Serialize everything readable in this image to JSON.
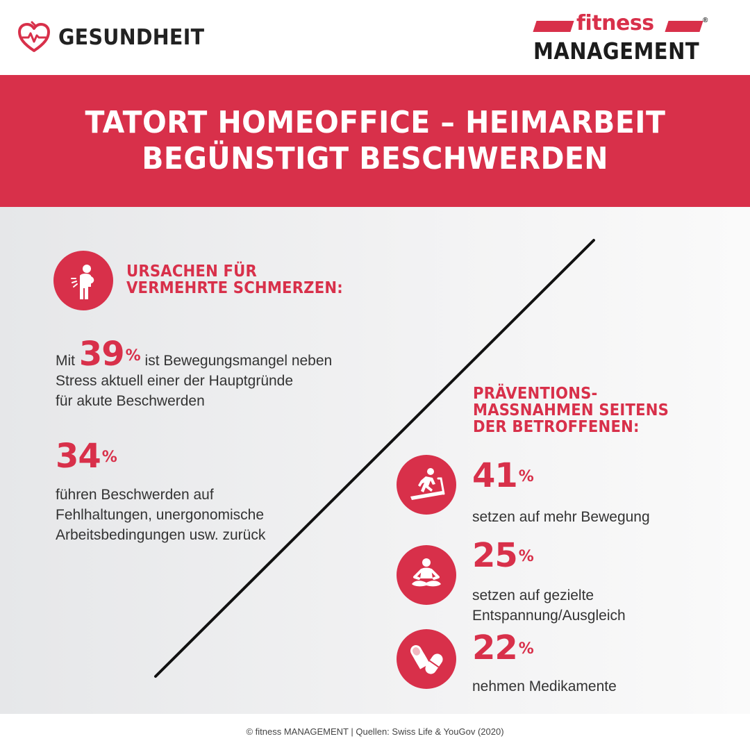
{
  "header": {
    "category_label": "GESUNDHEIT",
    "category_icon": "heart-pulse-icon",
    "brand_top": "fitness",
    "brand_bottom": "MANAGEMENT",
    "brand_registered": "®"
  },
  "banner": {
    "title_line1": "TATORT HOMEOFFICE – HEIMARBEIT",
    "title_line2": "BEGÜNSTIGT BESCHWERDEN"
  },
  "causes": {
    "icon": "back-pain-icon",
    "heading_line1": "URSACHEN FÜR",
    "heading_line2": "VERMEHRTE SCHMERZEN:",
    "stat1": {
      "prefix": "Mit",
      "number": "39",
      "percent": "%",
      "line1_suffix": "ist Bewegungsmangel neben",
      "line2": "Stress aktuell einer der Hauptgründe",
      "line3": "für akute Beschwerden"
    },
    "stat2": {
      "number": "34",
      "percent": "%",
      "line1": "führen Beschwerden auf",
      "line2": "Fehlhaltungen, unergonomische",
      "line3": "Arbeitsbedingungen usw. zurück"
    }
  },
  "prevention": {
    "heading_line1": "PRÄVENTIONS-",
    "heading_line2": "MASSNAHMEN SEITENS",
    "heading_line3": "DER BETROFFENEN:",
    "items": [
      {
        "icon": "treadmill-icon",
        "number": "41",
        "percent": "%",
        "line1": "setzen auf mehr Bewegung",
        "line2": ""
      },
      {
        "icon": "meditation-icon",
        "number": "25",
        "percent": "%",
        "line1": "setzen auf gezielte",
        "line2": "Entspannung/Ausgleich"
      },
      {
        "icon": "pills-icon",
        "number": "22",
        "percent": "%",
        "line1": "nehmen Medikamente",
        "line2": ""
      }
    ]
  },
  "footer": {
    "credit": "© fitness MANAGEMENT | Quellen: Swiss Life & YouGov (2020)"
  },
  "colors": {
    "accent": "#d8304a",
    "text": "#333333"
  }
}
